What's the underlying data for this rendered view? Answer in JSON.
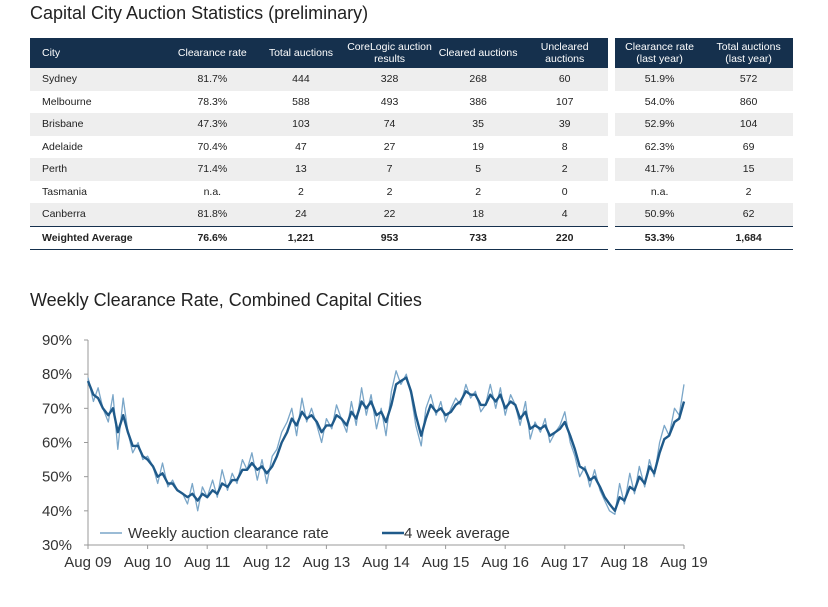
{
  "page": {
    "title": "Capital City Auction Statistics (preliminary)",
    "chart_title": "Weekly Clearance Rate, Combined Capital Cities"
  },
  "table": {
    "headers": [
      "City",
      "Clearance rate",
      "Total auctions",
      "CoreLogic auction results",
      "Cleared auctions",
      "Uncleared auctions"
    ],
    "last_year_headers": [
      "Clearance rate (last year)",
      "Total auctions (last year)"
    ],
    "rows": [
      {
        "city": "Sydney",
        "rate": "81.7%",
        "total": "444",
        "corelogic": "328",
        "cleared": "268",
        "uncleared": "60",
        "ly_rate": "51.9%",
        "ly_total": "572"
      },
      {
        "city": "Melbourne",
        "rate": "78.3%",
        "total": "588",
        "corelogic": "493",
        "cleared": "386",
        "uncleared": "107",
        "ly_rate": "54.0%",
        "ly_total": "860"
      },
      {
        "city": "Brisbane",
        "rate": "47.3%",
        "total": "103",
        "corelogic": "74",
        "cleared": "35",
        "uncleared": "39",
        "ly_rate": "52.9%",
        "ly_total": "104"
      },
      {
        "city": "Adelaide",
        "rate": "70.4%",
        "total": "47",
        "corelogic": "27",
        "cleared": "19",
        "uncleared": "8",
        "ly_rate": "62.3%",
        "ly_total": "69"
      },
      {
        "city": "Perth",
        "rate": "71.4%",
        "total": "13",
        "corelogic": "7",
        "cleared": "5",
        "uncleared": "2",
        "ly_rate": "41.7%",
        "ly_total": "15"
      },
      {
        "city": "Tasmania",
        "rate": "n.a.",
        "total": "2",
        "corelogic": "2",
        "cleared": "2",
        "uncleared": "0",
        "ly_rate": "n.a.",
        "ly_total": "2"
      },
      {
        "city": "Canberra",
        "rate": "81.8%",
        "total": "24",
        "corelogic": "22",
        "cleared": "18",
        "uncleared": "4",
        "ly_rate": "50.9%",
        "ly_total": "62"
      }
    ],
    "average": {
      "city": "Weighted Average",
      "rate": "76.6%",
      "total": "1,221",
      "corelogic": "953",
      "cleared": "733",
      "uncleared": "220",
      "ly_rate": "53.3%",
      "ly_total": "1,684"
    }
  },
  "colors": {
    "header_bg": "#15304d",
    "weekly_line": "#7aa6c8",
    "average_line": "#1f5a8a"
  },
  "chart_data": {
    "type": "line",
    "title": "Weekly Clearance Rate, Combined Capital Cities",
    "xlabel": "",
    "ylabel": "",
    "ylim": [
      30,
      90
    ],
    "yticks": [
      "30%",
      "40%",
      "50%",
      "60%",
      "70%",
      "80%",
      "90%"
    ],
    "yticks_values": [
      30,
      40,
      50,
      60,
      70,
      80,
      90
    ],
    "xlim": [
      2009.58,
      2019.58
    ],
    "xticks": [
      "Aug 09",
      "Aug 10",
      "Aug 11",
      "Aug 12",
      "Aug 13",
      "Aug 14",
      "Aug 15",
      "Aug 16",
      "Aug 17",
      "Aug 18",
      "Aug 19"
    ],
    "legend_position": "bottom-left",
    "series": [
      {
        "name": "Weekly auction clearance rate",
        "x": [
          2009.58,
          2009.67,
          2009.75,
          2009.83,
          2009.92,
          2010.0,
          2010.08,
          2010.17,
          2010.25,
          2010.33,
          2010.42,
          2010.5,
          2010.58,
          2010.67,
          2010.75,
          2010.83,
          2010.92,
          2011.0,
          2011.08,
          2011.17,
          2011.25,
          2011.33,
          2011.42,
          2011.5,
          2011.58,
          2011.67,
          2011.75,
          2011.83,
          2011.92,
          2012.0,
          2012.08,
          2012.17,
          2012.25,
          2012.33,
          2012.42,
          2012.5,
          2012.58,
          2012.67,
          2012.75,
          2012.83,
          2012.92,
          2013.0,
          2013.08,
          2013.17,
          2013.25,
          2013.33,
          2013.42,
          2013.5,
          2013.58,
          2013.67,
          2013.75,
          2013.83,
          2013.92,
          2014.0,
          2014.08,
          2014.17,
          2014.25,
          2014.33,
          2014.42,
          2014.5,
          2014.58,
          2014.67,
          2014.75,
          2014.83,
          2014.92,
          2015.0,
          2015.08,
          2015.17,
          2015.25,
          2015.33,
          2015.42,
          2015.5,
          2015.58,
          2015.67,
          2015.75,
          2015.83,
          2015.92,
          2016.0,
          2016.08,
          2016.17,
          2016.25,
          2016.33,
          2016.42,
          2016.5,
          2016.58,
          2016.67,
          2016.75,
          2016.83,
          2016.92,
          2017.0,
          2017.08,
          2017.17,
          2017.25,
          2017.33,
          2017.42,
          2017.5,
          2017.58,
          2017.67,
          2017.75,
          2017.83,
          2017.92,
          2018.0,
          2018.08,
          2018.17,
          2018.25,
          2018.33,
          2018.42,
          2018.5,
          2018.58,
          2018.67,
          2018.75,
          2018.83,
          2018.92,
          2019.0,
          2019.08,
          2019.17,
          2019.25,
          2019.33,
          2019.42,
          2019.5,
          2019.58
        ],
        "values": [
          79,
          72,
          76,
          70,
          66,
          74,
          58,
          73,
          63,
          57,
          60,
          55,
          56,
          53,
          48,
          54,
          47,
          49,
          46,
          45,
          42,
          48,
          40,
          47,
          44,
          49,
          44,
          52,
          46,
          51,
          48,
          55,
          52,
          57,
          49,
          55,
          48,
          56,
          58,
          63,
          66,
          70,
          62,
          73,
          66,
          70,
          65,
          60,
          67,
          64,
          71,
          67,
          63,
          72,
          65,
          76,
          68,
          74,
          64,
          70,
          62,
          75,
          81,
          77,
          80,
          74,
          65,
          59,
          70,
          74,
          68,
          72,
          66,
          70,
          73,
          71,
          77,
          73,
          75,
          69,
          71,
          77,
          70,
          76,
          68,
          74,
          71,
          65,
          72,
          61,
          66,
          63,
          67,
          60,
          63,
          65,
          69,
          60,
          56,
          50,
          53,
          47,
          52,
          46,
          43,
          40,
          39,
          48,
          42,
          51,
          45,
          53,
          47,
          55,
          50,
          60,
          65,
          62,
          70,
          68,
          77
        ]
      },
      {
        "name": "4 week average",
        "x": [
          2009.58,
          2009.67,
          2009.75,
          2009.83,
          2009.92,
          2010.0,
          2010.08,
          2010.17,
          2010.25,
          2010.33,
          2010.42,
          2010.5,
          2010.58,
          2010.67,
          2010.75,
          2010.83,
          2010.92,
          2011.0,
          2011.08,
          2011.17,
          2011.25,
          2011.33,
          2011.42,
          2011.5,
          2011.58,
          2011.67,
          2011.75,
          2011.83,
          2011.92,
          2012.0,
          2012.08,
          2012.17,
          2012.25,
          2012.33,
          2012.42,
          2012.5,
          2012.58,
          2012.67,
          2012.75,
          2012.83,
          2012.92,
          2013.0,
          2013.08,
          2013.17,
          2013.25,
          2013.33,
          2013.42,
          2013.5,
          2013.58,
          2013.67,
          2013.75,
          2013.83,
          2013.92,
          2014.0,
          2014.08,
          2014.17,
          2014.25,
          2014.33,
          2014.42,
          2014.5,
          2014.58,
          2014.67,
          2014.75,
          2014.83,
          2014.92,
          2015.0,
          2015.08,
          2015.17,
          2015.25,
          2015.33,
          2015.42,
          2015.5,
          2015.58,
          2015.67,
          2015.75,
          2015.83,
          2015.92,
          2016.0,
          2016.08,
          2016.17,
          2016.25,
          2016.33,
          2016.42,
          2016.5,
          2016.58,
          2016.67,
          2016.75,
          2016.83,
          2016.92,
          2017.0,
          2017.08,
          2017.17,
          2017.25,
          2017.33,
          2017.42,
          2017.5,
          2017.58,
          2017.67,
          2017.75,
          2017.83,
          2017.92,
          2018.0,
          2018.08,
          2018.17,
          2018.25,
          2018.33,
          2018.42,
          2018.5,
          2018.58,
          2018.67,
          2018.75,
          2018.83,
          2018.92,
          2019.0,
          2019.08,
          2019.17,
          2019.25,
          2019.33,
          2019.42,
          2019.5,
          2019.58
        ],
        "values": [
          78,
          74,
          73,
          70,
          68,
          70,
          63,
          68,
          63,
          59,
          59,
          56,
          55,
          53,
          50,
          51,
          48,
          48,
          46,
          45,
          44,
          45,
          43,
          45,
          44,
          46,
          45,
          48,
          47,
          49,
          49,
          52,
          52,
          54,
          52,
          53,
          51,
          53,
          56,
          60,
          63,
          67,
          65,
          69,
          67,
          68,
          66,
          63,
          65,
          65,
          68,
          67,
          65,
          69,
          67,
          72,
          70,
          72,
          68,
          69,
          66,
          71,
          77,
          78,
          79,
          75,
          68,
          62,
          67,
          71,
          69,
          70,
          68,
          69,
          71,
          72,
          75,
          74,
          74,
          71,
          71,
          74,
          72,
          74,
          70,
          72,
          71,
          67,
          69,
          64,
          65,
          64,
          65,
          62,
          63,
          64,
          66,
          62,
          58,
          53,
          52,
          49,
          50,
          47,
          44,
          42,
          40,
          44,
          43,
          47,
          46,
          50,
          48,
          53,
          51,
          57,
          61,
          62,
          66,
          67,
          72
        ]
      }
    ]
  }
}
